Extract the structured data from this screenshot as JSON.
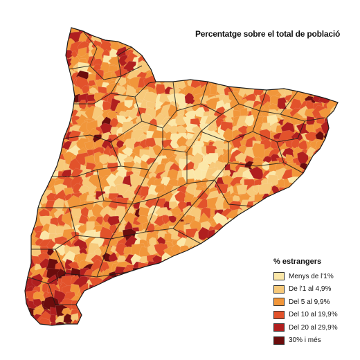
{
  "title": "Percentatge sobre el total de població",
  "legend": {
    "title": "% estrangers",
    "items": [
      {
        "label": "Menys de l'1%",
        "color": "#fbe7a8"
      },
      {
        "label": "De l'1 al 4,9%",
        "color": "#f7c97a"
      },
      {
        "label": "Del 5 al 9,9%",
        "color": "#f1963a"
      },
      {
        "label": "Del 10 al 19,9%",
        "color": "#e2522b"
      },
      {
        "label": "Del 20 al 29,9%",
        "color": "#b01f1f"
      },
      {
        "label": "30% i més",
        "color": "#6b0d0d"
      }
    ]
  }
}
